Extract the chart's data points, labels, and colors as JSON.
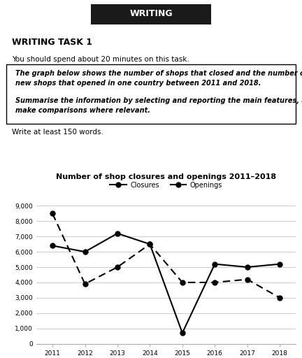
{
  "title": "Number of shop closures and openings 2011–2018",
  "years": [
    2011,
    2012,
    2013,
    2014,
    2015,
    2016,
    2017,
    2018
  ],
  "closures": [
    6400,
    6000,
    7200,
    6500,
    700,
    5200,
    5000,
    5200
  ],
  "openings": [
    8500,
    3900,
    5000,
    6500,
    4000,
    4000,
    4200,
    3000
  ],
  "ylim": [
    0,
    9000
  ],
  "yticks": [
    0,
    1000,
    2000,
    3000,
    4000,
    5000,
    6000,
    7000,
    8000,
    9000
  ],
  "ytick_labels": [
    "0",
    "1,000",
    "2,000",
    "3,000",
    "4,000",
    "5,000",
    "6,000",
    "7,000",
    "8,000",
    "9,000"
  ],
  "closures_color": "#000000",
  "openings_color": "#000000",
  "header_text": "WRITING",
  "header_bg": "#1a1a1a",
  "task_title": "WRITING TASK 1",
  "task_subtitle": "You should spend about 20 minutes on this task.",
  "box_text_line1": "The graph below shows the number of shops that closed and the number of",
  "box_text_line2": "new shops that opened in one country between 2011 and 2018.",
  "box_text_line3": "Summarise the information by selecting and reporting the main features, and",
  "box_text_line4": "make comparisons where relevant.",
  "footer_text": "Write at least 150 words.",
  "legend_closures": "Closures",
  "legend_openings": "Openings",
  "bg_color": "#ffffff",
  "grid_color": "#cccccc"
}
